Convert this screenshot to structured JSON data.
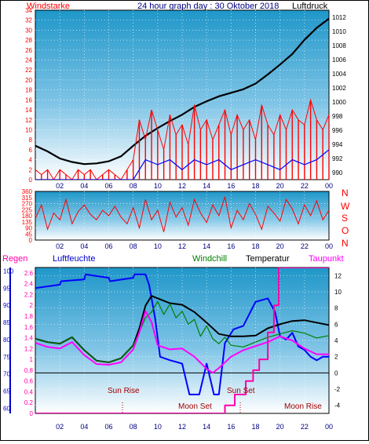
{
  "header": {
    "left_label": "Windstarke",
    "title": "24 hour graph day : 30 Oktober 2018",
    "right_label": "Luftdruck"
  },
  "direction_labels": [
    "N",
    "W",
    "S",
    "O",
    "N"
  ],
  "bottom_labels": {
    "regen": "Regen",
    "luftfeuchte": "Luftfeuchte",
    "windchill": "Windchill",
    "temperatur": "Temperatur",
    "taupunkt": "Taupunkt"
  },
  "annotations": {
    "sun_rise": "Sun Rise",
    "sun_set": "Sun Set",
    "moon_set": "Moon Set",
    "moon_rise": "Moon Rise"
  },
  "colors": {
    "plot_bg_top": "#1f97c9",
    "plot_bg_bottom": "#ffffff",
    "wind": "#ff0000",
    "gust": "#0000ff",
    "pressure": "#000000",
    "direction": "#ff0000",
    "rain": "#ff00aa",
    "humidity": "#0000ff",
    "windchill": "#008000",
    "temperature": "#000000",
    "dewpoint": "#ff00ff"
  },
  "chart_data": [
    {
      "type": "line",
      "name": "wind-pressure",
      "x_ticks": [
        "02",
        "04",
        "06",
        "08",
        "10",
        "12",
        "14",
        "16",
        "18",
        "20",
        "22",
        "00"
      ],
      "left_axis": {
        "label": "Windstarke",
        "range": [
          0,
          34
        ],
        "ticks": [
          0,
          2,
          4,
          6,
          8,
          10,
          12,
          14,
          16,
          18,
          20,
          22,
          24,
          26,
          28,
          30,
          32,
          34
        ]
      },
      "right_axis": {
        "label": "Luftdruck",
        "range": [
          989,
          1013
        ],
        "ticks": [
          990,
          992,
          994,
          996,
          998,
          1000,
          1002,
          1004,
          1006,
          1008,
          1010,
          1012
        ]
      },
      "series": [
        {
          "name": "Luftdruck",
          "axis": "right",
          "x": [
            0,
            1,
            2,
            3,
            4,
            5,
            6,
            7,
            8,
            9,
            10,
            11,
            12,
            13,
            14,
            15,
            16,
            17,
            18,
            19,
            20,
            21,
            22,
            23,
            24
          ],
          "values": [
            993.8,
            993.0,
            992.0,
            991.5,
            991.2,
            991.3,
            991.6,
            992.3,
            993.8,
            995.2,
            996.3,
            997.3,
            998.2,
            999.3,
            1000.1,
            1000.8,
            1001.3,
            1001.8,
            1002.6,
            1003.9,
            1005.3,
            1006.8,
            1008.8,
            1010.5,
            1011.8
          ]
        },
        {
          "name": "Windstarke",
          "axis": "left",
          "x": [
            0,
            0.5,
            1,
            1.5,
            2,
            2.5,
            3,
            3.5,
            4,
            4.5,
            5,
            5.5,
            6,
            6.5,
            7,
            7.5,
            8,
            8.5,
            9,
            9.5,
            10,
            10.5,
            11,
            11.5,
            12,
            12.5,
            13,
            13.5,
            14,
            14.5,
            15,
            15.5,
            16,
            16.5,
            17,
            17.5,
            18,
            18.5,
            19,
            19.5,
            20,
            20.5,
            21,
            21.5,
            22,
            22.5,
            23,
            23.5,
            24
          ],
          "values": [
            2,
            1,
            2,
            0,
            2,
            1,
            0,
            2,
            1,
            2,
            0,
            1,
            2,
            1,
            0,
            2,
            4,
            12,
            8,
            14,
            10,
            6,
            13,
            9,
            11,
            7,
            15,
            10,
            12,
            8,
            11,
            14,
            9,
            13,
            10,
            12,
            8,
            15,
            11,
            9,
            13,
            10,
            14,
            12,
            11,
            16,
            12,
            10,
            13
          ]
        },
        {
          "name": "Windboen",
          "axis": "left",
          "x": [
            0,
            1,
            2,
            3,
            4,
            5,
            6,
            7,
            8,
            8.5,
            9,
            10,
            11,
            12,
            13,
            14,
            15,
            16,
            17,
            18,
            19,
            20,
            21,
            22,
            23,
            24
          ],
          "values": [
            0,
            0,
            0,
            0,
            0,
            0,
            0,
            0,
            0,
            2,
            4,
            3,
            4,
            2,
            4,
            3,
            4,
            2,
            3,
            4,
            3,
            2,
            4,
            3,
            4,
            6
          ]
        }
      ]
    },
    {
      "type": "line",
      "name": "wind-direction",
      "x_ticks": [
        "02",
        "04",
        "06",
        "08",
        "10",
        "12",
        "14",
        "16",
        "18",
        "20",
        "22",
        "00"
      ],
      "left_axis": {
        "range": [
          0,
          360
        ],
        "ticks": [
          0,
          45,
          90,
          135,
          180,
          225,
          270,
          315,
          360
        ]
      },
      "series": [
        {
          "name": "Windrichtung",
          "x": [
            0,
            0.5,
            1,
            1.5,
            2,
            2.5,
            3,
            3.5,
            4,
            4.5,
            5,
            5.5,
            6,
            6.5,
            7,
            7.5,
            8,
            8.5,
            9,
            9.5,
            10,
            10.5,
            11,
            11.5,
            12,
            12.5,
            13,
            13.5,
            14,
            14.5,
            15,
            15.5,
            16,
            16.5,
            17,
            17.5,
            18,
            18.5,
            19,
            19.5,
            20,
            20.5,
            21,
            21.5,
            22,
            22.5,
            23,
            23.5,
            24
          ],
          "values": [
            160,
            260,
            80,
            200,
            150,
            300,
            120,
            210,
            260,
            190,
            150,
            220,
            180,
            250,
            170,
            120,
            240,
            90,
            300,
            150,
            220,
            60,
            280,
            170,
            240,
            110,
            300,
            200,
            130,
            260,
            180,
            320,
            90,
            220,
            150,
            270,
            190,
            80,
            250,
            200,
            140,
            300,
            230,
            120,
            260,
            180,
            290,
            150,
            220
          ]
        }
      ]
    },
    {
      "type": "line",
      "name": "humidity-temperature",
      "x_ticks": [
        "02",
        "04",
        "06",
        "08",
        "10",
        "12",
        "14",
        "16",
        "18",
        "20",
        "22",
        "00"
      ],
      "humidity_axis": {
        "label": "Luftfeuchte",
        "range": [
          58.5,
          101
        ],
        "ticks": [
          60,
          65,
          70,
          75,
          80,
          85,
          90,
          95,
          100
        ]
      },
      "rain_axis": {
        "label": "Regen",
        "range": [
          0,
          2.7
        ],
        "ticks": [
          0,
          0.2,
          0.4,
          0.6,
          0.8,
          1,
          1.2,
          1.4,
          1.6,
          1.8,
          2,
          2.2,
          2.4,
          2.6
        ]
      },
      "temperature_axis": {
        "label": "Temperatur",
        "range": [
          -5,
          13
        ],
        "ticks": [
          -4,
          -2,
          0,
          2,
          4,
          6,
          8,
          10,
          12
        ]
      },
      "series": [
        {
          "name": "Luftfeuchte",
          "axis": "humidity",
          "x": [
            0,
            2,
            2.1,
            4,
            4.1,
            6,
            6.1,
            8,
            8.1,
            9,
            9.3,
            9.8,
            10.2,
            11,
            12,
            12.6,
            13.4,
            14,
            14.6,
            15,
            15.5,
            16.2,
            17,
            18,
            19,
            19.6,
            20,
            20.5,
            21,
            21.5,
            22,
            22.5,
            23,
            23.5,
            24
          ],
          "values": [
            95,
            96,
            97,
            97.5,
            99,
            98,
            97,
            98,
            99,
            99,
            96,
            86,
            75,
            74,
            73,
            64,
            64,
            73,
            64,
            64,
            79,
            83,
            84,
            91,
            92,
            88,
            81,
            80,
            82,
            78,
            77,
            75,
            74,
            75,
            75
          ]
        },
        {
          "name": "Temperatur",
          "axis": "temperature",
          "x": [
            0,
            1,
            2,
            3,
            4,
            5,
            6,
            7,
            8,
            8.5,
            9,
            9.5,
            10,
            11,
            12,
            13,
            14,
            15,
            16,
            17,
            18,
            19,
            20,
            21,
            22,
            23,
            24
          ],
          "values": [
            4.2,
            3.8,
            3.6,
            4.4,
            2.8,
            1.5,
            1.3,
            1.8,
            3.4,
            5.5,
            8.3,
            9.5,
            9.2,
            8.6,
            8.4,
            7.5,
            6.2,
            4.8,
            4.5,
            4.5,
            4.6,
            5.5,
            6.0,
            6.4,
            6.5,
            6.2,
            5.9
          ]
        },
        {
          "name": "Windchill",
          "axis": "temperature",
          "x": [
            0,
            1,
            2,
            3,
            4,
            5,
            6,
            7,
            8,
            8.5,
            9,
            9.5,
            10,
            10.5,
            11,
            11.5,
            12,
            12.5,
            13,
            13.5,
            14,
            14.5,
            15,
            15.5,
            16,
            17,
            18,
            19,
            20,
            21,
            22,
            23,
            24
          ],
          "values": [
            4.2,
            3.8,
            3.6,
            4.4,
            2.8,
            1.5,
            1.3,
            1.8,
            3.4,
            5.0,
            6.8,
            7.5,
            8.8,
            7.2,
            8.5,
            6.8,
            7.6,
            6.0,
            6.6,
            4.5,
            5.8,
            4.2,
            3.6,
            4.4,
            3.4,
            3.2,
            3.8,
            4.4,
            4.8,
            5.2,
            4.9,
            4.3,
            4.6
          ]
        },
        {
          "name": "Taupunkt",
          "axis": "temperature",
          "x": [
            0,
            1,
            2,
            3,
            4,
            5,
            6,
            7,
            8,
            8.5,
            9,
            9.5,
            10,
            11,
            12,
            13,
            14,
            14.5,
            15,
            16,
            17,
            18,
            19,
            20,
            21,
            22,
            23,
            24
          ],
          "values": [
            3.7,
            3.2,
            3.0,
            3.8,
            2.2,
            1.1,
            1.0,
            1.3,
            2.9,
            5.0,
            7.6,
            6.3,
            3.4,
            2.9,
            3.0,
            2.0,
            0.5,
            0.0,
            0.6,
            2.0,
            2.8,
            3.3,
            3.8,
            4.5,
            4.0,
            3.0,
            2.3,
            2.3
          ]
        },
        {
          "name": "Regen",
          "axis": "rain",
          "x": [
            0,
            15.5,
            15.5,
            16.3,
            16.3,
            17.2,
            17.2,
            17.8,
            17.8,
            18.3,
            18.3,
            19.0,
            19.0,
            19.5,
            19.5,
            19.9,
            19.9,
            21.8,
            24
          ],
          "values": [
            0,
            0,
            0.15,
            0.15,
            0.35,
            0.35,
            0.6,
            0.6,
            0.8,
            0.8,
            1.0,
            1.0,
            1.5,
            1.5,
            2.0,
            2.0,
            2.7,
            2.7,
            2.7
          ]
        }
      ]
    }
  ]
}
